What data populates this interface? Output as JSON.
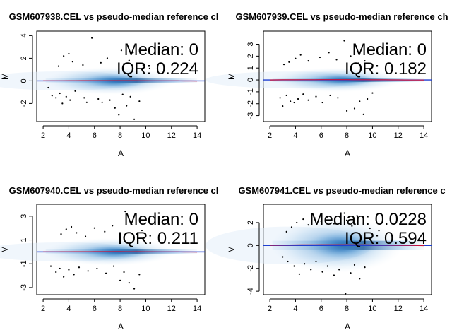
{
  "chart_data": [
    {
      "type": "scatter",
      "title": "GSM607938.CEL vs pseudo-median reference cl",
      "xlabel": "A",
      "ylabel": "M",
      "xlim": [
        1.5,
        14.6
      ],
      "ylim": [
        -3.6,
        4.4
      ],
      "xticks": [
        2,
        4,
        6,
        8,
        10,
        12,
        14
      ],
      "yticks": [
        -2,
        0,
        2,
        4
      ],
      "median_label": "Median: 0",
      "iqr_label": "IQR: 0.224",
      "density_spread": 0.38,
      "outliers": [
        {
          "a": 2.4,
          "m": -0.6
        },
        {
          "a": 2.7,
          "m": -1.3
        },
        {
          "a": 3.0,
          "m": -1.5
        },
        {
          "a": 3.3,
          "m": -1.1
        },
        {
          "a": 3.5,
          "m": -2.0
        },
        {
          "a": 3.8,
          "m": -1.4
        },
        {
          "a": 4.1,
          "m": -1.7
        },
        {
          "a": 4.5,
          "m": -0.9
        },
        {
          "a": 5.2,
          "m": -1.5
        },
        {
          "a": 5.4,
          "m": -1.9
        },
        {
          "a": 6.3,
          "m": -1.6
        },
        {
          "a": 6.6,
          "m": -1.9
        },
        {
          "a": 7.2,
          "m": -1.7
        },
        {
          "a": 7.6,
          "m": -2.4
        },
        {
          "a": 7.9,
          "m": -3.0
        },
        {
          "a": 8.2,
          "m": -1.2
        },
        {
          "a": 8.5,
          "m": -2.2
        },
        {
          "a": 8.8,
          "m": -1.4
        },
        {
          "a": 9.1,
          "m": -3.4
        },
        {
          "a": 9.5,
          "m": -1.8
        },
        {
          "a": 3.2,
          "m": 1.3
        },
        {
          "a": 3.6,
          "m": 2.2
        },
        {
          "a": 4.0,
          "m": 2.4
        },
        {
          "a": 4.3,
          "m": 1.7
        },
        {
          "a": 5.1,
          "m": 1.4
        },
        {
          "a": 5.8,
          "m": 3.8
        },
        {
          "a": 6.5,
          "m": 1.6
        },
        {
          "a": 7.0,
          "m": 2.0
        },
        {
          "a": 8.1,
          "m": 2.7
        },
        {
          "a": 8.3,
          "m": 1.5
        },
        {
          "a": 8.7,
          "m": 1.8
        },
        {
          "a": 9.0,
          "m": 2.5
        },
        {
          "a": 9.8,
          "m": 1.4
        },
        {
          "a": 10.3,
          "m": 1.1
        }
      ]
    },
    {
      "type": "scatter",
      "title": "GSM607939.CEL vs pseudo-median reference ch",
      "xlabel": "A",
      "ylabel": "M",
      "xlim": [
        1.5,
        14.6
      ],
      "ylim": [
        -3.5,
        4.1
      ],
      "xticks": [
        2,
        4,
        6,
        8,
        10,
        12,
        14
      ],
      "yticks": [
        -3,
        -2,
        -1,
        0,
        1,
        2,
        3
      ],
      "median_label": "Median: 0",
      "iqr_label": "IQR: 0.182",
      "density_spread": 0.32,
      "outliers": [
        {
          "a": 2.8,
          "m": -1.5
        },
        {
          "a": 3.0,
          "m": -2.2
        },
        {
          "a": 3.3,
          "m": -1.3
        },
        {
          "a": 3.6,
          "m": -1.8
        },
        {
          "a": 3.9,
          "m": -1.9
        },
        {
          "a": 4.2,
          "m": -1.6
        },
        {
          "a": 4.6,
          "m": -1.2
        },
        {
          "a": 5.0,
          "m": -1.7
        },
        {
          "a": 5.6,
          "m": -1.4
        },
        {
          "a": 6.1,
          "m": -1.9
        },
        {
          "a": 6.7,
          "m": -1.3
        },
        {
          "a": 7.3,
          "m": -1.5
        },
        {
          "a": 8.0,
          "m": -2.6
        },
        {
          "a": 8.6,
          "m": -2.4
        },
        {
          "a": 9.0,
          "m": -1.8
        },
        {
          "a": 9.3,
          "m": -2.9
        },
        {
          "a": 9.6,
          "m": -1.6
        },
        {
          "a": 10.0,
          "m": -1.1
        },
        {
          "a": 3.1,
          "m": 1.3
        },
        {
          "a": 3.5,
          "m": 1.5
        },
        {
          "a": 4.0,
          "m": 1.8
        },
        {
          "a": 4.4,
          "m": 2.1
        },
        {
          "a": 5.0,
          "m": 1.6
        },
        {
          "a": 5.9,
          "m": 1.9
        },
        {
          "a": 6.6,
          "m": 2.3
        },
        {
          "a": 7.2,
          "m": 1.7
        },
        {
          "a": 7.8,
          "m": 3.3
        },
        {
          "a": 8.3,
          "m": 2.0
        },
        {
          "a": 8.9,
          "m": 1.4
        },
        {
          "a": 9.4,
          "m": 1.6
        }
      ]
    },
    {
      "type": "scatter",
      "title": "GSM607940.CEL vs pseudo-median reference cl",
      "xlabel": "A",
      "ylabel": "M",
      "xlim": [
        1.5,
        14.6
      ],
      "ylim": [
        -3.6,
        4.0
      ],
      "xticks": [
        2,
        4,
        6,
        8,
        10,
        12,
        14
      ],
      "yticks": [
        -3,
        -1,
        1,
        3
      ],
      "median_label": "Median: 0",
      "iqr_label": "IQR: 0.211",
      "density_spread": 0.36,
      "outliers": [
        {
          "a": 2.6,
          "m": -1.2
        },
        {
          "a": 3.0,
          "m": -1.7
        },
        {
          "a": 3.3,
          "m": -1.4
        },
        {
          "a": 3.6,
          "m": -2.1
        },
        {
          "a": 4.0,
          "m": -1.5
        },
        {
          "a": 4.4,
          "m": -1.9
        },
        {
          "a": 4.8,
          "m": -1.3
        },
        {
          "a": 5.5,
          "m": -1.6
        },
        {
          "a": 6.2,
          "m": -1.4
        },
        {
          "a": 6.9,
          "m": -1.8
        },
        {
          "a": 7.5,
          "m": -1.2
        },
        {
          "a": 8.0,
          "m": -2.4
        },
        {
          "a": 8.3,
          "m": -1.7
        },
        {
          "a": 8.7,
          "m": -2.6
        },
        {
          "a": 9.1,
          "m": -3.1
        },
        {
          "a": 9.5,
          "m": -1.9
        },
        {
          "a": 3.4,
          "m": 1.5
        },
        {
          "a": 3.8,
          "m": 1.9
        },
        {
          "a": 4.2,
          "m": 2.1
        },
        {
          "a": 4.6,
          "m": 1.6
        },
        {
          "a": 5.3,
          "m": 1.3
        },
        {
          "a": 6.0,
          "m": 2.0
        },
        {
          "a": 6.8,
          "m": 1.7
        },
        {
          "a": 7.4,
          "m": 2.2
        },
        {
          "a": 8.4,
          "m": 3.4
        },
        {
          "a": 8.9,
          "m": 2.3
        },
        {
          "a": 9.3,
          "m": 1.5
        },
        {
          "a": 9.7,
          "m": 1.8
        }
      ]
    },
    {
      "type": "scatter",
      "title": "GSM607941.CEL vs pseudo-median reference c",
      "xlabel": "A",
      "ylabel": "M",
      "xlim": [
        1.5,
        14.6
      ],
      "ylim": [
        -4.3,
        3.6
      ],
      "xticks": [
        2,
        4,
        6,
        8,
        10,
        12,
        14
      ],
      "yticks": [
        -4,
        -2,
        0,
        2
      ],
      "median_label": "Median: 0.0228",
      "iqr_label": "IQR: 0.594",
      "density_spread": 0.75,
      "outliers": [
        {
          "a": 3.0,
          "m": -1.0
        },
        {
          "a": 3.4,
          "m": -1.4
        },
        {
          "a": 3.9,
          "m": -1.8
        },
        {
          "a": 4.3,
          "m": -2.5
        },
        {
          "a": 4.7,
          "m": -1.6
        },
        {
          "a": 5.2,
          "m": -2.1
        },
        {
          "a": 5.6,
          "m": -1.4
        },
        {
          "a": 6.1,
          "m": -2.3
        },
        {
          "a": 6.5,
          "m": -1.8
        },
        {
          "a": 7.0,
          "m": -2.6
        },
        {
          "a": 7.4,
          "m": -2.1
        },
        {
          "a": 7.9,
          "m": -4.2
        },
        {
          "a": 8.3,
          "m": -2.4
        },
        {
          "a": 8.6,
          "m": -1.7
        },
        {
          "a": 9.0,
          "m": -2.9
        },
        {
          "a": 9.4,
          "m": -1.9
        },
        {
          "a": 3.3,
          "m": 1.2
        },
        {
          "a": 3.7,
          "m": 1.6
        },
        {
          "a": 4.1,
          "m": 2.0
        },
        {
          "a": 4.6,
          "m": 2.3
        },
        {
          "a": 5.0,
          "m": 1.8
        },
        {
          "a": 5.5,
          "m": 2.4
        },
        {
          "a": 6.0,
          "m": 2.1
        },
        {
          "a": 6.5,
          "m": 2.5
        },
        {
          "a": 7.0,
          "m": 1.9
        },
        {
          "a": 7.5,
          "m": 2.8
        },
        {
          "a": 8.0,
          "m": 2.2
        },
        {
          "a": 8.4,
          "m": 1.7
        },
        {
          "a": 8.8,
          "m": 2.6
        },
        {
          "a": 9.3,
          "m": 1.9
        },
        {
          "a": 9.8,
          "m": 1.5
        },
        {
          "a": 10.5,
          "m": 1.3
        }
      ]
    }
  ]
}
